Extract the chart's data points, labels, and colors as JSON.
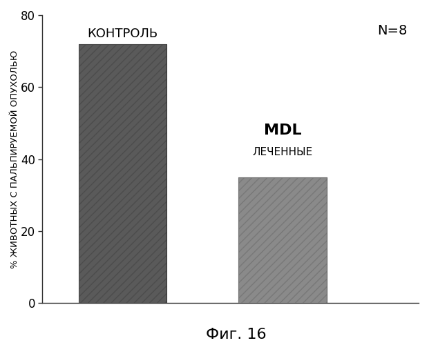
{
  "values": [
    72,
    35
  ],
  "bar_colors": [
    "#5a5a5a",
    "#8a8a8a"
  ],
  "bar_edge_colors": [
    "#333333",
    "#555555"
  ],
  "ylabel": "% ЖИВОТНЫХ С ПАЛЬПИРУЕМОЙ ОПУХОЛЬЮ",
  "ylim": [
    0,
    80
  ],
  "yticks": [
    0,
    20,
    40,
    60,
    80
  ],
  "n_annotation": "N=8",
  "figure_title": "Фиг. 16",
  "bar1_label": "КОНТРОЛЬ",
  "bar2_label_line1": "MDL",
  "bar2_label_line2": "ЛЕЧЕННЫЕ",
  "background_color": "#ffffff",
  "figure_bg": "#ffffff",
  "bar1_x": 1.5,
  "bar2_x": 3.5,
  "bar_width": 1.1,
  "xlim": [
    0.5,
    5.2
  ]
}
